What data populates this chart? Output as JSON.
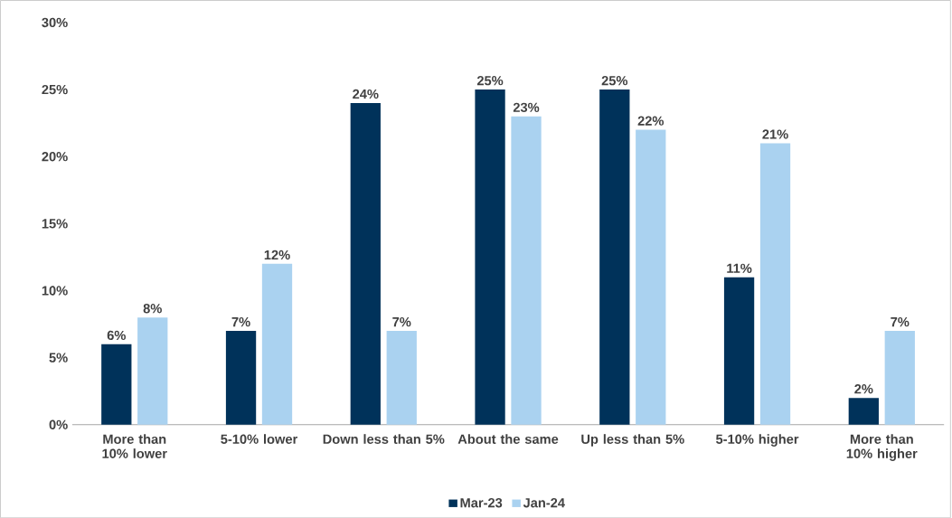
{
  "chart_data": {
    "type": "bar",
    "categories": [
      "More than 10% lower",
      "5-10% lower",
      "Down less than 5%",
      "About the same",
      "Up less than 5%",
      "5-10% higher",
      "More than 10% higher"
    ],
    "series": [
      {
        "name": "Mar-23",
        "color": "#00325a",
        "values": [
          6,
          7,
          24,
          25,
          25,
          11,
          2
        ],
        "value_labels": [
          "6%",
          "7%",
          "24%",
          "25%",
          "25%",
          "11%",
          "2%"
        ]
      },
      {
        "name": "Jan-24",
        "color": "#aad2f0",
        "values": [
          8,
          12,
          7,
          23,
          22,
          21,
          7
        ],
        "value_labels": [
          "8%",
          "12%",
          "7%",
          "23%",
          "22%",
          "21%",
          "7%"
        ]
      }
    ],
    "ylim": [
      0,
      30
    ],
    "yticks": [
      {
        "value": 0,
        "label": "0%"
      },
      {
        "value": 5,
        "label": "5%"
      },
      {
        "value": 10,
        "label": "10%"
      },
      {
        "value": 15,
        "label": "15%"
      },
      {
        "value": 20,
        "label": "20%"
      },
      {
        "value": 25,
        "label": "25%"
      },
      {
        "value": 30,
        "label": "30%"
      }
    ],
    "grid": false,
    "legend": "bottom"
  }
}
